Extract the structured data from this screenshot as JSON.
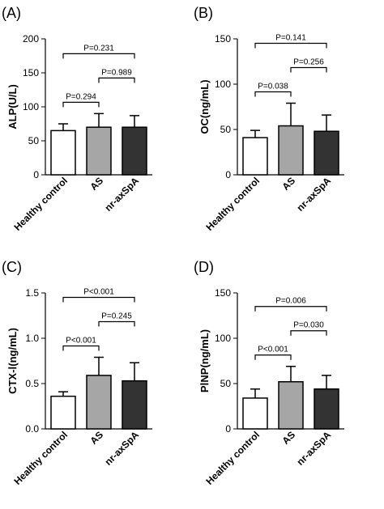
{
  "chart_data": [
    {
      "type": "bar",
      "panel": "(A)",
      "y_label": "ALP(U/L)",
      "categories": [
        "Healthy control",
        "AS",
        "nr-axSpA"
      ],
      "values": [
        65,
        70,
        70
      ],
      "errors": [
        10,
        20,
        17
      ],
      "colors": [
        "#ffffff",
        "#a6a6a6",
        "#333333"
      ],
      "ylim": [
        0,
        200
      ],
      "yticks": [
        0,
        50,
        100,
        150,
        200
      ],
      "annotations": [
        "P=0.294",
        "P=0.989",
        "P=0.231"
      ]
    },
    {
      "type": "bar",
      "panel": "(B)",
      "y_label": "OC(ng/mL)",
      "categories": [
        "Healthy control",
        "AS",
        "nr-axSpA"
      ],
      "values": [
        41,
        54,
        48
      ],
      "errors": [
        8,
        25,
        18
      ],
      "colors": [
        "#ffffff",
        "#a6a6a6",
        "#333333"
      ],
      "ylim": [
        0,
        150
      ],
      "yticks": [
        0,
        50,
        100,
        150
      ],
      "annotations": [
        "P=0.038",
        "P=0.256",
        "P=0.141"
      ]
    },
    {
      "type": "bar",
      "panel": "(C)",
      "y_label": "CTX-Ⅰ(ng/mL)",
      "categories": [
        "Healthy control",
        "AS",
        "nr-axSpA"
      ],
      "values": [
        0.36,
        0.59,
        0.53
      ],
      "errors": [
        0.05,
        0.2,
        0.2
      ],
      "colors": [
        "#ffffff",
        "#a6a6a6",
        "#333333"
      ],
      "ylim": [
        0,
        1.5
      ],
      "yticks": [
        {
          "value": 0,
          "label": "0.0"
        },
        0.5,
        {
          "value": 1,
          "label": "1.0"
        },
        1.5
      ],
      "annotations": [
        "P<0.001",
        "P=0.245",
        "P<0.001"
      ]
    },
    {
      "type": "bar",
      "panel": "(D)",
      "y_label": "PⅠNP(ng/mL)",
      "categories": [
        "Healthy control",
        "AS",
        "nr-axSpA"
      ],
      "values": [
        34,
        52,
        44
      ],
      "errors": [
        10,
        17,
        15
      ],
      "colors": [
        "#ffffff",
        "#a6a6a6",
        "#333333"
      ],
      "ylim": [
        0,
        150
      ],
      "yticks": [
        0,
        50,
        100,
        150
      ],
      "annotations": [
        "P<0.001",
        "P=0.030",
        "P=0.006"
      ]
    }
  ]
}
